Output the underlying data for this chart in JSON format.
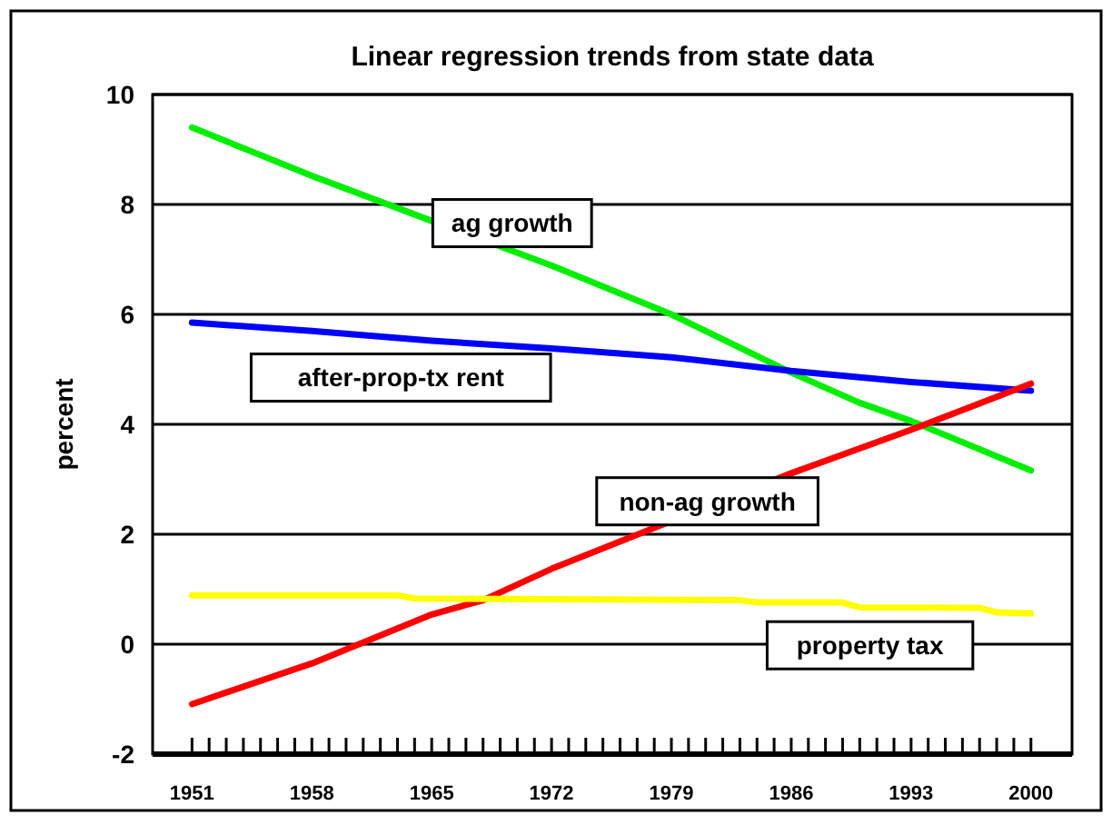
{
  "chart_data": {
    "type": "line",
    "title": "Linear regression trends from state data",
    "ylabel": "percent",
    "xlim": [
      1948.7,
      2002.4
    ],
    "ylim": [
      -2,
      10
    ],
    "yticks": [
      -2,
      0,
      2,
      4,
      6,
      8,
      10
    ],
    "xticks": [
      1951,
      {
        "value": 1952,
        "label": null
      },
      {
        "value": 1953,
        "label": null
      },
      {
        "value": 1954,
        "label": null
      },
      {
        "value": 1955,
        "label": null
      },
      {
        "value": 1956,
        "label": null
      },
      {
        "value": 1957,
        "label": null
      },
      1958,
      {
        "value": 1959,
        "label": null
      },
      {
        "value": 1960,
        "label": null
      },
      {
        "value": 1961,
        "label": null
      },
      {
        "value": 1962,
        "label": null
      },
      {
        "value": 1963,
        "label": null
      },
      {
        "value": 1964,
        "label": null
      },
      1965,
      {
        "value": 1966,
        "label": null
      },
      {
        "value": 1967,
        "label": null
      },
      {
        "value": 1968,
        "label": null
      },
      {
        "value": 1969,
        "label": null
      },
      {
        "value": 1970,
        "label": null
      },
      {
        "value": 1971,
        "label": null
      },
      1972,
      {
        "value": 1973,
        "label": null
      },
      {
        "value": 1974,
        "label": null
      },
      {
        "value": 1975,
        "label": null
      },
      {
        "value": 1976,
        "label": null
      },
      {
        "value": 1977,
        "label": null
      },
      {
        "value": 1978,
        "label": null
      },
      1979,
      {
        "value": 1980,
        "label": null
      },
      {
        "value": 1981,
        "label": null
      },
      {
        "value": 1982,
        "label": null
      },
      {
        "value": 1983,
        "label": null
      },
      {
        "value": 1984,
        "label": null
      },
      {
        "value": 1985,
        "label": null
      },
      1986,
      {
        "value": 1987,
        "label": null
      },
      {
        "value": 1988,
        "label": null
      },
      {
        "value": 1989,
        "label": null
      },
      {
        "value": 1990,
        "label": null
      },
      {
        "value": 1991,
        "label": null
      },
      {
        "value": 1992,
        "label": null
      },
      1993,
      {
        "value": 1994,
        "label": null
      },
      {
        "value": 1995,
        "label": null
      },
      {
        "value": 1996,
        "label": null
      },
      {
        "value": 1997,
        "label": null
      },
      {
        "value": 1998,
        "label": null
      },
      {
        "value": 1999,
        "label": null
      },
      2000
    ],
    "grid": "y",
    "legend": false,
    "marker": "none",
    "line_style": "solid",
    "series": [
      {
        "name": "ag growth",
        "color": "#00ee00",
        "x": [
          1951,
          1958,
          1965,
          1972,
          1979,
          1986,
          1990,
          1993,
          2000
        ],
        "values": [
          9.4,
          8.52,
          7.7,
          6.89,
          6.0,
          4.94,
          4.39,
          4.06,
          3.16
        ]
      },
      {
        "name": "after-prop-tx rent",
        "color": "#0000ff",
        "x": [
          1951,
          1958,
          1965,
          1972,
          1979,
          1986,
          1993,
          2000
        ],
        "values": [
          5.85,
          5.7,
          5.52,
          5.38,
          5.22,
          4.97,
          4.77,
          4.61
        ]
      },
      {
        "name": "non-ag growth",
        "color": "#ff0000",
        "x": [
          1951,
          1958,
          1965,
          1968,
          1972,
          1986,
          1993,
          2000
        ],
        "values": [
          -1.09,
          -0.35,
          0.54,
          0.8,
          1.37,
          3.11,
          3.9,
          4.74
        ]
      },
      {
        "name": "property tax",
        "color": "#ffff00",
        "x": [
          1951,
          1963,
          1964,
          1983,
          1984,
          1989,
          1990,
          1997,
          1998,
          2000
        ],
        "values": [
          0.89,
          0.89,
          0.83,
          0.8,
          0.76,
          0.76,
          0.67,
          0.66,
          0.58,
          0.56
        ]
      }
    ]
  }
}
